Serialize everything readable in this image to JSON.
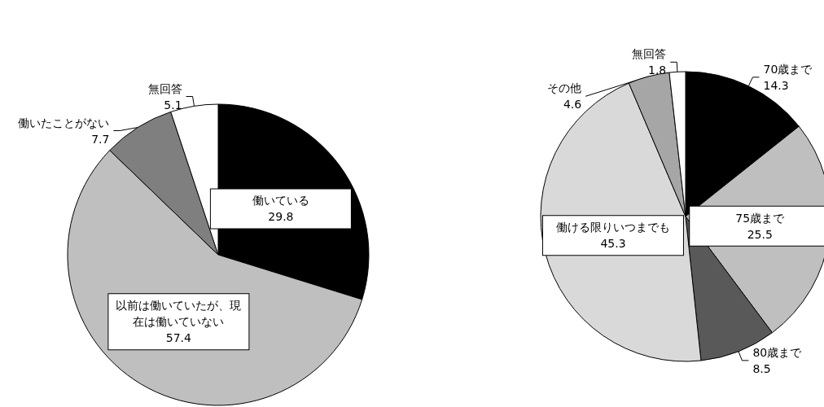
{
  "chart_data": [
    {
      "type": "pie",
      "categories": [
        "働いている",
        "以前は働いていたが、現在は働いていない",
        "働いたことがない",
        "無回答"
      ],
      "values": [
        29.8,
        57.4,
        7.7,
        5.1
      ],
      "colors": [
        "#000000",
        "#bfbfbf",
        "#7f7f7f",
        "#ffffff"
      ],
      "data_labels": true
    },
    {
      "type": "pie",
      "categories": [
        "70歳まで",
        "75歳まで",
        "80歳まで",
        "働ける限りいつまでも",
        "その他",
        "無回答"
      ],
      "values": [
        14.3,
        25.5,
        8.5,
        45.3,
        4.6,
        1.8
      ],
      "colors": [
        "#000000",
        "#bfbfbf",
        "#595959",
        "#d9d9d9",
        "#a6a6a6",
        "#ffffff"
      ],
      "data_labels": true
    }
  ]
}
